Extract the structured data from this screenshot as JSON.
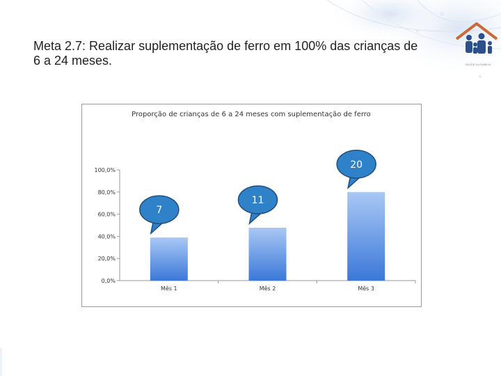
{
  "slide": {
    "title": "Meta 2.7: Realizar suplementação de ferro em 100% das crianças de 6 a 24 meses."
  },
  "logo": {
    "icon": "family-house-icon",
    "text": "SAÚDE DA FAMÍLIA"
  },
  "colors": {
    "bar_top": "#a9c8f5",
    "bar_bottom": "#3b78d8",
    "callout_fill": "#2f82c8",
    "callout_border": "#1f4e80",
    "axis": "#9a9a9a"
  },
  "chart_data": {
    "type": "bar",
    "title": "Proporção de crianças de 6 a 24 meses com suplementação de ferro",
    "categories": [
      "Mês 1",
      "Mês 2",
      "Mês 3"
    ],
    "values": [
      38.9,
      47.8,
      80.0
    ],
    "ylim": [
      0,
      100
    ],
    "yticks": [
      "0,0%",
      "20,0%",
      "40,0%",
      "60,0%",
      "80,0%",
      "100,0%"
    ],
    "ytick_values": [
      0,
      20,
      40,
      60,
      80,
      100
    ],
    "grid": false,
    "legend": "none",
    "callouts": [
      "7",
      "11",
      "20"
    ]
  }
}
